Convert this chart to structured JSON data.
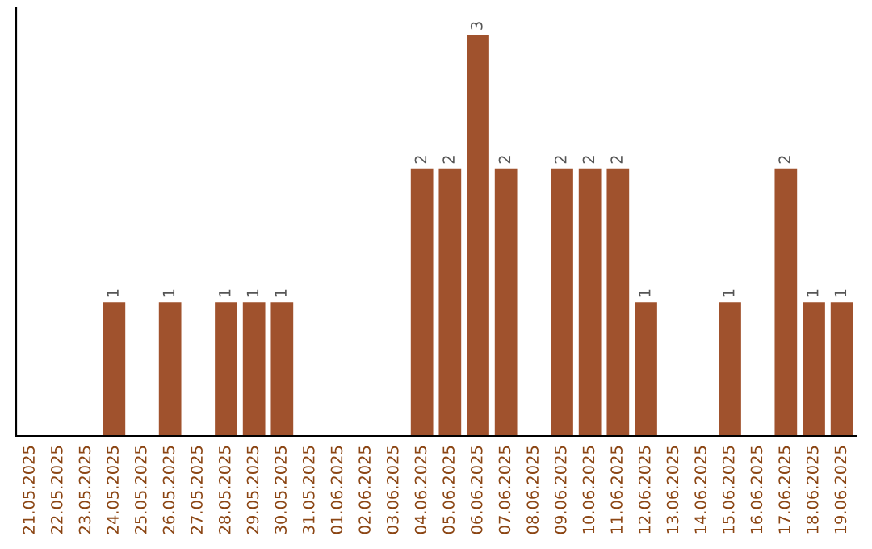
{
  "chart_data": {
    "type": "bar",
    "categories": [
      "21.05.2025",
      "22.05.2025",
      "23.05.2025",
      "24.05.2025",
      "25.05.2025",
      "26.05.2025",
      "27.05.2025",
      "28.05.2025",
      "29.05.2025",
      "30.05.2025",
      "31.05.2025",
      "01.06.2025",
      "02.06.2025",
      "03.06.2025",
      "04.06.2025",
      "05.06.2025",
      "06.06.2025",
      "07.06.2025",
      "08.06.2025",
      "09.06.2025",
      "10.06.2025",
      "11.06.2025",
      "12.06.2025",
      "13.06.2025",
      "14.06.2025",
      "15.06.2025",
      "16.06.2025",
      "17.06.2025",
      "18.06.2025",
      "19.06.2025"
    ],
    "values": [
      0,
      0,
      0,
      1,
      0,
      1,
      0,
      1,
      1,
      1,
      0,
      0,
      0,
      0,
      2,
      2,
      3,
      2,
      0,
      2,
      2,
      2,
      1,
      0,
      0,
      1,
      0,
      2,
      1,
      1
    ],
    "value_labels": [
      null,
      null,
      null,
      "1",
      null,
      "1",
      null,
      "1",
      "1",
      "1",
      null,
      null,
      null,
      null,
      "2",
      "2",
      "3",
      "2",
      null,
      "2",
      "2",
      "2",
      "1",
      null,
      null,
      "1",
      null,
      "2",
      "1",
      "1"
    ],
    "color": "#a0522d",
    "ylim": [
      0,
      3.2
    ],
    "tick_labels": "x",
    "grid": false,
    "legend": false
  }
}
